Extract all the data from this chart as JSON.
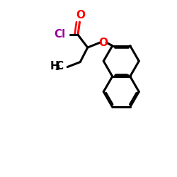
{
  "bg_color": "#ffffff",
  "bond_color": "#000000",
  "lw": 2.2,
  "cl_color": "#990099",
  "o_color": "#ff0000",
  "figsize": [
    2.5,
    2.5
  ],
  "dpi": 100,
  "xlim": [
    0,
    10
  ],
  "ylim": [
    0,
    10
  ],
  "ring_s": 1.0,
  "TCx": 6.85,
  "TCy": 6.55,
  "fs": 11
}
